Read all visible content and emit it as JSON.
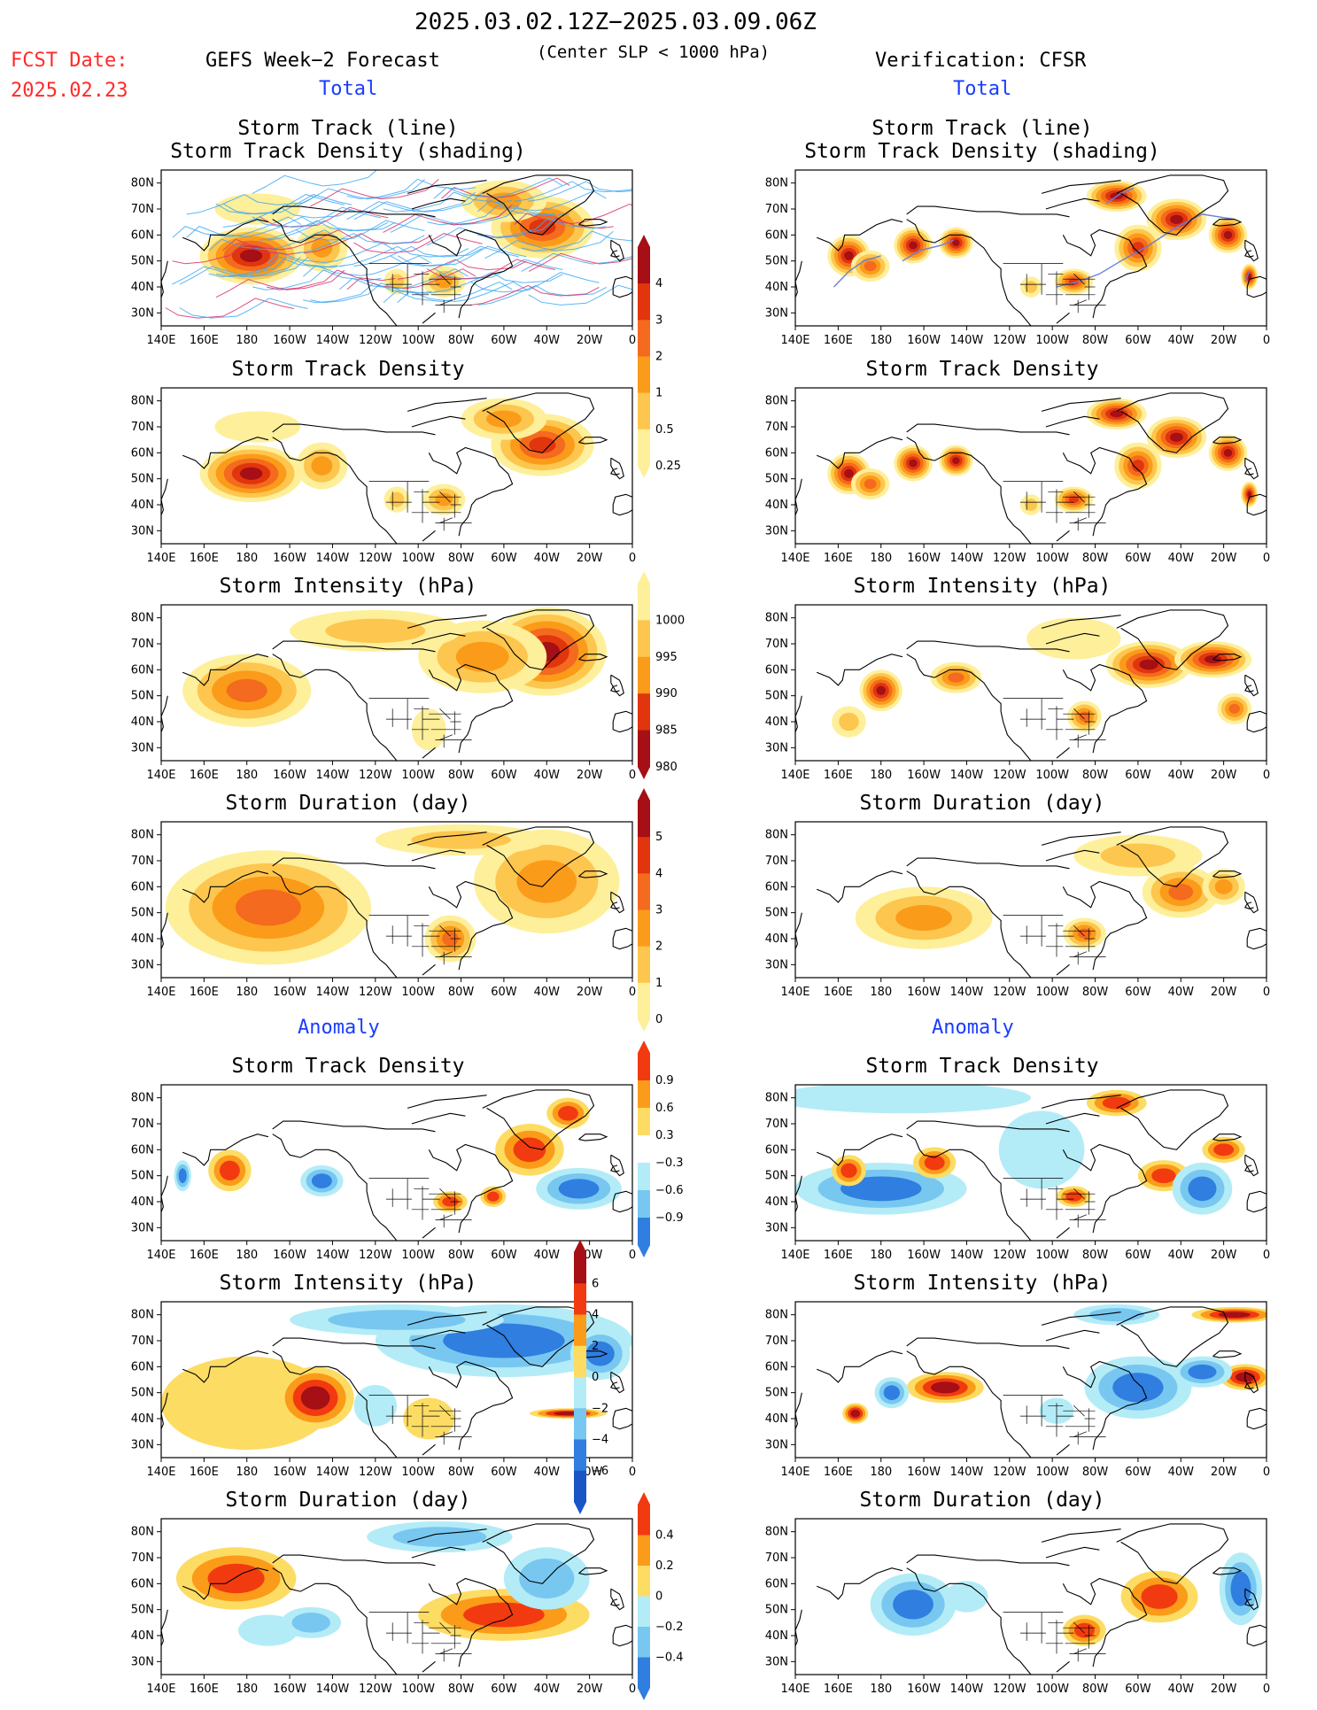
{
  "header": {
    "period": "2025.03.02.12Z−2025.03.09.06Z",
    "forecast_title": "GEFS Week−2 Forecast",
    "criterion": "(Center SLP < 1000 hPa)",
    "verification": "Verification: CFSR",
    "fcst_label": "FCST Date:",
    "fcst_date": "2025.02.23",
    "total_label": "Total",
    "anomaly_label": "Anomaly"
  },
  "panel_titles": {
    "track": [
      "Storm Track (line)",
      "Storm Track Density (shading)"
    ],
    "density": "Storm Track Density",
    "intensity": "Storm Intensity (hPa)",
    "duration": "Storm Duration (day)"
  },
  "axes": {
    "lat_labels": [
      "80N",
      "70N",
      "60N",
      "50N",
      "40N",
      "30N"
    ],
    "lon_labels": [
      "140E",
      "160E",
      "180",
      "160W",
      "140W",
      "120W",
      "100W",
      "80W",
      "60W",
      "40W",
      "20W",
      "0"
    ]
  },
  "colorbars": {
    "total_density": {
      "labels": [
        "4",
        "3",
        "2",
        "1",
        "0.5",
        "0.25"
      ],
      "colors": [
        "#a50f15",
        "#e0350d",
        "#f46a1e",
        "#fb9b1a",
        "#fdc64f",
        "#feef9a"
      ]
    },
    "total_intensity": {
      "labels": [
        "1000",
        "995",
        "990",
        "985",
        "980"
      ],
      "colors": [
        "#feef9a",
        "#fdc64f",
        "#fb9b1a",
        "#e0350d",
        "#a50f15"
      ]
    },
    "total_duration": {
      "labels": [
        "5",
        "4",
        "3",
        "2",
        "1",
        "0"
      ],
      "colors": [
        "#a50f15",
        "#e0350d",
        "#f46a1e",
        "#fb9b1a",
        "#fdc64f",
        "#feef9a"
      ]
    },
    "anom_density": {
      "labels": [
        "0.9",
        "0.6",
        "0.3",
        "−0.3",
        "−0.6",
        "−0.9"
      ],
      "colors": [
        "#f23a10",
        "#fb9b1a",
        "#fddc64",
        "#ffffff",
        "#b3ecf7",
        "#78c7f0",
        "#2f7ee0"
      ]
    },
    "anom_intensity": {
      "labels": [
        "6",
        "4",
        "2",
        "0",
        "−2",
        "−4",
        "−6"
      ],
      "colors": [
        "#a50f15",
        "#f23a10",
        "#fb9b1a",
        "#fddc64",
        "#b3ecf7",
        "#78c7f0",
        "#2f7ee0",
        "#1a55c8"
      ]
    },
    "anom_duration": {
      "labels": [
        "0.4",
        "0.2",
        "0",
        "−0.2",
        "−0.4"
      ],
      "colors": [
        "#f23a10",
        "#fb9b1a",
        "#fddc64",
        "#b3ecf7",
        "#78c7f0",
        "#2f7ee0"
      ]
    }
  },
  "palette": {
    "total": [
      "#feef9a",
      "#fdc64f",
      "#fb9b1a",
      "#f46a1e",
      "#e0350d",
      "#a50f15"
    ],
    "anom_pos": [
      "#fddc64",
      "#fb9b1a",
      "#f23a10",
      "#a50f15"
    ],
    "anom_neg": [
      "#b3ecf7",
      "#78c7f0",
      "#2f7ee0",
      "#1a55c8"
    ],
    "track_line": "#3fa9f5",
    "track_line_obs": "#6b7fd6"
  }
}
